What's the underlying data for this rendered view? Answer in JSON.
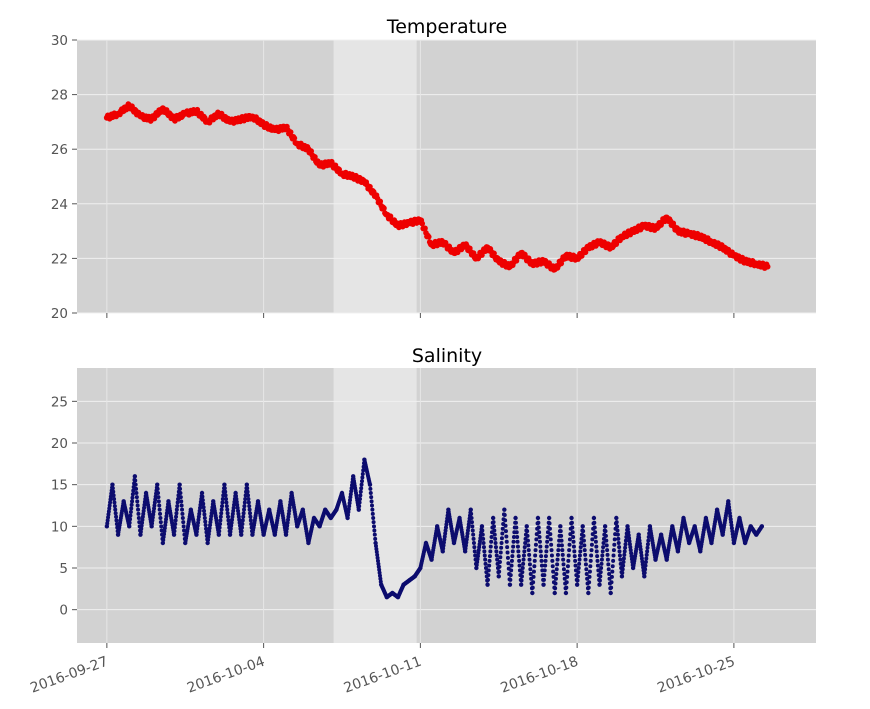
{
  "chart_data": [
    {
      "type": "scatter",
      "title": "Temperature",
      "xlabel": "",
      "ylabel": "",
      "x_start": "2016-09-27",
      "x_step_days": 0.5,
      "xlim": [
        "2016-09-25T16:00",
        "2016-10-28T16:00"
      ],
      "ylim": [
        20,
        30
      ],
      "yticks": [
        20,
        22,
        24,
        26,
        28,
        30
      ],
      "xticks": [
        "2016-09-27",
        "2016-10-04",
        "2016-10-11",
        "2016-10-18",
        "2016-10-25"
      ],
      "highlight_span": [
        "2016-10-07T03:00",
        "2016-10-10T20:00"
      ],
      "grid": true,
      "color": "#ee0000",
      "values": [
        27.15,
        27.3,
        27.6,
        27.2,
        27.1,
        27.5,
        27.1,
        27.3,
        27.4,
        27.0,
        27.3,
        27.0,
        27.1,
        27.2,
        26.9,
        26.7,
        26.8,
        26.2,
        26.0,
        25.4,
        25.5,
        25.1,
        25.0,
        24.8,
        24.3,
        23.6,
        23.2,
        23.3,
        23.4,
        22.5,
        22.6,
        22.2,
        22.5,
        22.0,
        22.4,
        21.9,
        21.7,
        22.2,
        21.8,
        21.9,
        21.6,
        22.1,
        22.0,
        22.4,
        22.6,
        22.4,
        22.8,
        23.0,
        23.2,
        23.1,
        23.5,
        23.0,
        22.9,
        22.8,
        22.6,
        22.4,
        22.1,
        21.9,
        21.8,
        21.7
      ]
    },
    {
      "type": "scatter",
      "title": "Salinity",
      "xlabel": "",
      "ylabel": "",
      "x_start": "2016-09-27",
      "x_step_days": 0.25,
      "xlim": [
        "2016-09-25T16:00",
        "2016-10-28T16:00"
      ],
      "ylim": [
        -4,
        29
      ],
      "yticks": [
        0,
        5,
        10,
        15,
        20,
        25
      ],
      "xticks": [
        "2016-09-27",
        "2016-10-04",
        "2016-10-11",
        "2016-10-18",
        "2016-10-25"
      ],
      "highlight_span": [
        "2016-10-07T03:00",
        "2016-10-10T20:00"
      ],
      "grid": true,
      "color": "#0c0c6e",
      "values": [
        10,
        15,
        9,
        13,
        10,
        16,
        9,
        14,
        10,
        15,
        8,
        13,
        9,
        15,
        8,
        12,
        9,
        14,
        8,
        13,
        9,
        15,
        9,
        14,
        9,
        15,
        9,
        13,
        9,
        12,
        9,
        13,
        9,
        14,
        10,
        12,
        8,
        11,
        10,
        12,
        11,
        12,
        14,
        11,
        16,
        12,
        18,
        15,
        8,
        3,
        1.5,
        2,
        1.5,
        3,
        3.5,
        4,
        5,
        8,
        6,
        10,
        7,
        12,
        8,
        11,
        7,
        12,
        5,
        10,
        3,
        11,
        4,
        12,
        3,
        11,
        3,
        10,
        2,
        11,
        3,
        11,
        2,
        10,
        2,
        11,
        3,
        10,
        2,
        11,
        3,
        10,
        2,
        11,
        4,
        10,
        5,
        9,
        4,
        10,
        6,
        9,
        6,
        10,
        7,
        11,
        8,
        10,
        7,
        11,
        8,
        12,
        9,
        13,
        8,
        11,
        8,
        10,
        9,
        10
      ]
    }
  ]
}
